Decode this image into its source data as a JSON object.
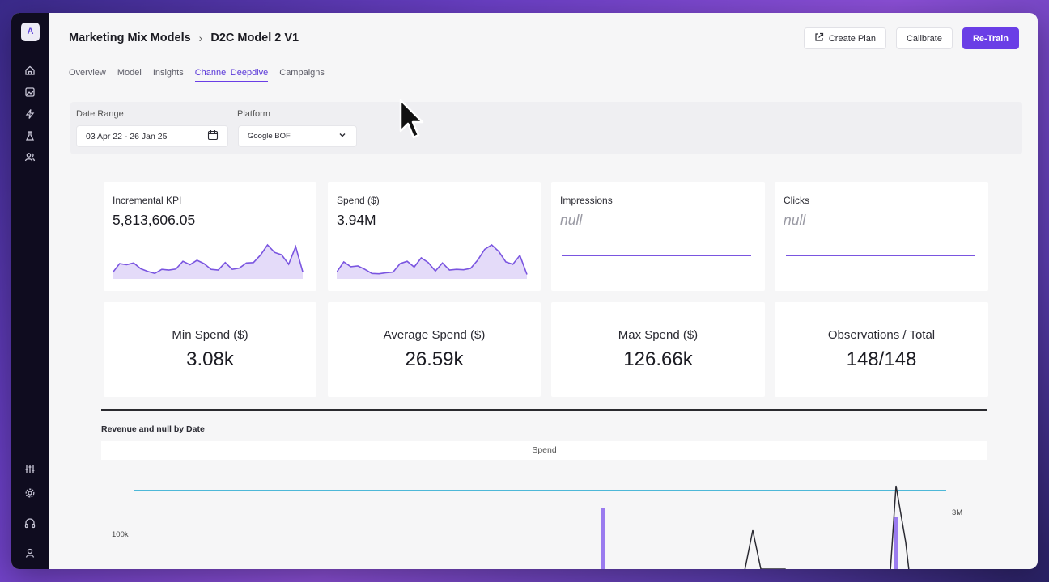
{
  "sidebar": {
    "logo": "A",
    "icons": [
      "home-icon",
      "image-icon",
      "lightning-icon",
      "flask-icon",
      "users-icon",
      "sliders-icon",
      "gear-icon",
      "headphones-icon",
      "user-icon"
    ]
  },
  "header": {
    "breadcrumb_root": "Marketing Mix Models",
    "breadcrumb_sep": "›",
    "breadcrumb_current": "D2C Model 2 V1",
    "create_plan": "Create Plan",
    "calibrate": "Calibrate",
    "retrain": "Re-Train"
  },
  "tabs": [
    "Overview",
    "Model",
    "Insights",
    "Channel Deepdive",
    "Campaigns"
  ],
  "active_tab": "Channel Deepdive",
  "filters": {
    "date_range_label": "Date Range",
    "date_range_value": "03 Apr 22 - 26 Jan 25",
    "platform_label": "Platform",
    "platform_value": "Google BOF"
  },
  "kpi_cards": [
    {
      "label": "Incremental KPI",
      "value": "5,813,606.05",
      "sparkline": [
        0.18,
        0.45,
        0.42,
        0.47,
        0.3,
        0.22,
        0.16,
        0.28,
        0.26,
        0.29,
        0.52,
        0.42,
        0.55,
        0.45,
        0.28,
        0.26,
        0.48,
        0.28,
        0.32,
        0.47,
        0.48,
        0.7,
        1.0,
        0.78,
        0.71,
        0.43,
        0.95,
        0.21
      ]
    },
    {
      "label": "Spend ($)",
      "value": "3.94M",
      "sparkline": [
        0.2,
        0.5,
        0.36,
        0.38,
        0.28,
        0.16,
        0.15,
        0.18,
        0.2,
        0.45,
        0.52,
        0.35,
        0.62,
        0.48,
        0.23,
        0.47,
        0.26,
        0.28,
        0.27,
        0.31,
        0.55,
        0.87,
        1.0,
        0.81,
        0.5,
        0.43,
        0.69,
        0.13
      ]
    },
    {
      "label": "Impressions",
      "value": "null"
    },
    {
      "label": "Clicks",
      "value": "null"
    }
  ],
  "stats": [
    {
      "label": "Min Spend ($)",
      "value": "3.08k"
    },
    {
      "label": "Average Spend ($)",
      "value": "26.59k"
    },
    {
      "label": "Max Spend ($)",
      "value": "126.66k"
    },
    {
      "label": "Observations / Total",
      "value": "148/148"
    }
  ],
  "chart": {
    "title": "Revenue and null by Date",
    "legend": "Spend",
    "left_tick": "100k",
    "right_tick": "3M"
  },
  "colors": {
    "accent": "#6a3ee6",
    "spark_fill": "#d9ccf7",
    "spark_line": "#7a55e0",
    "cyan_line": "#4db8d8"
  }
}
